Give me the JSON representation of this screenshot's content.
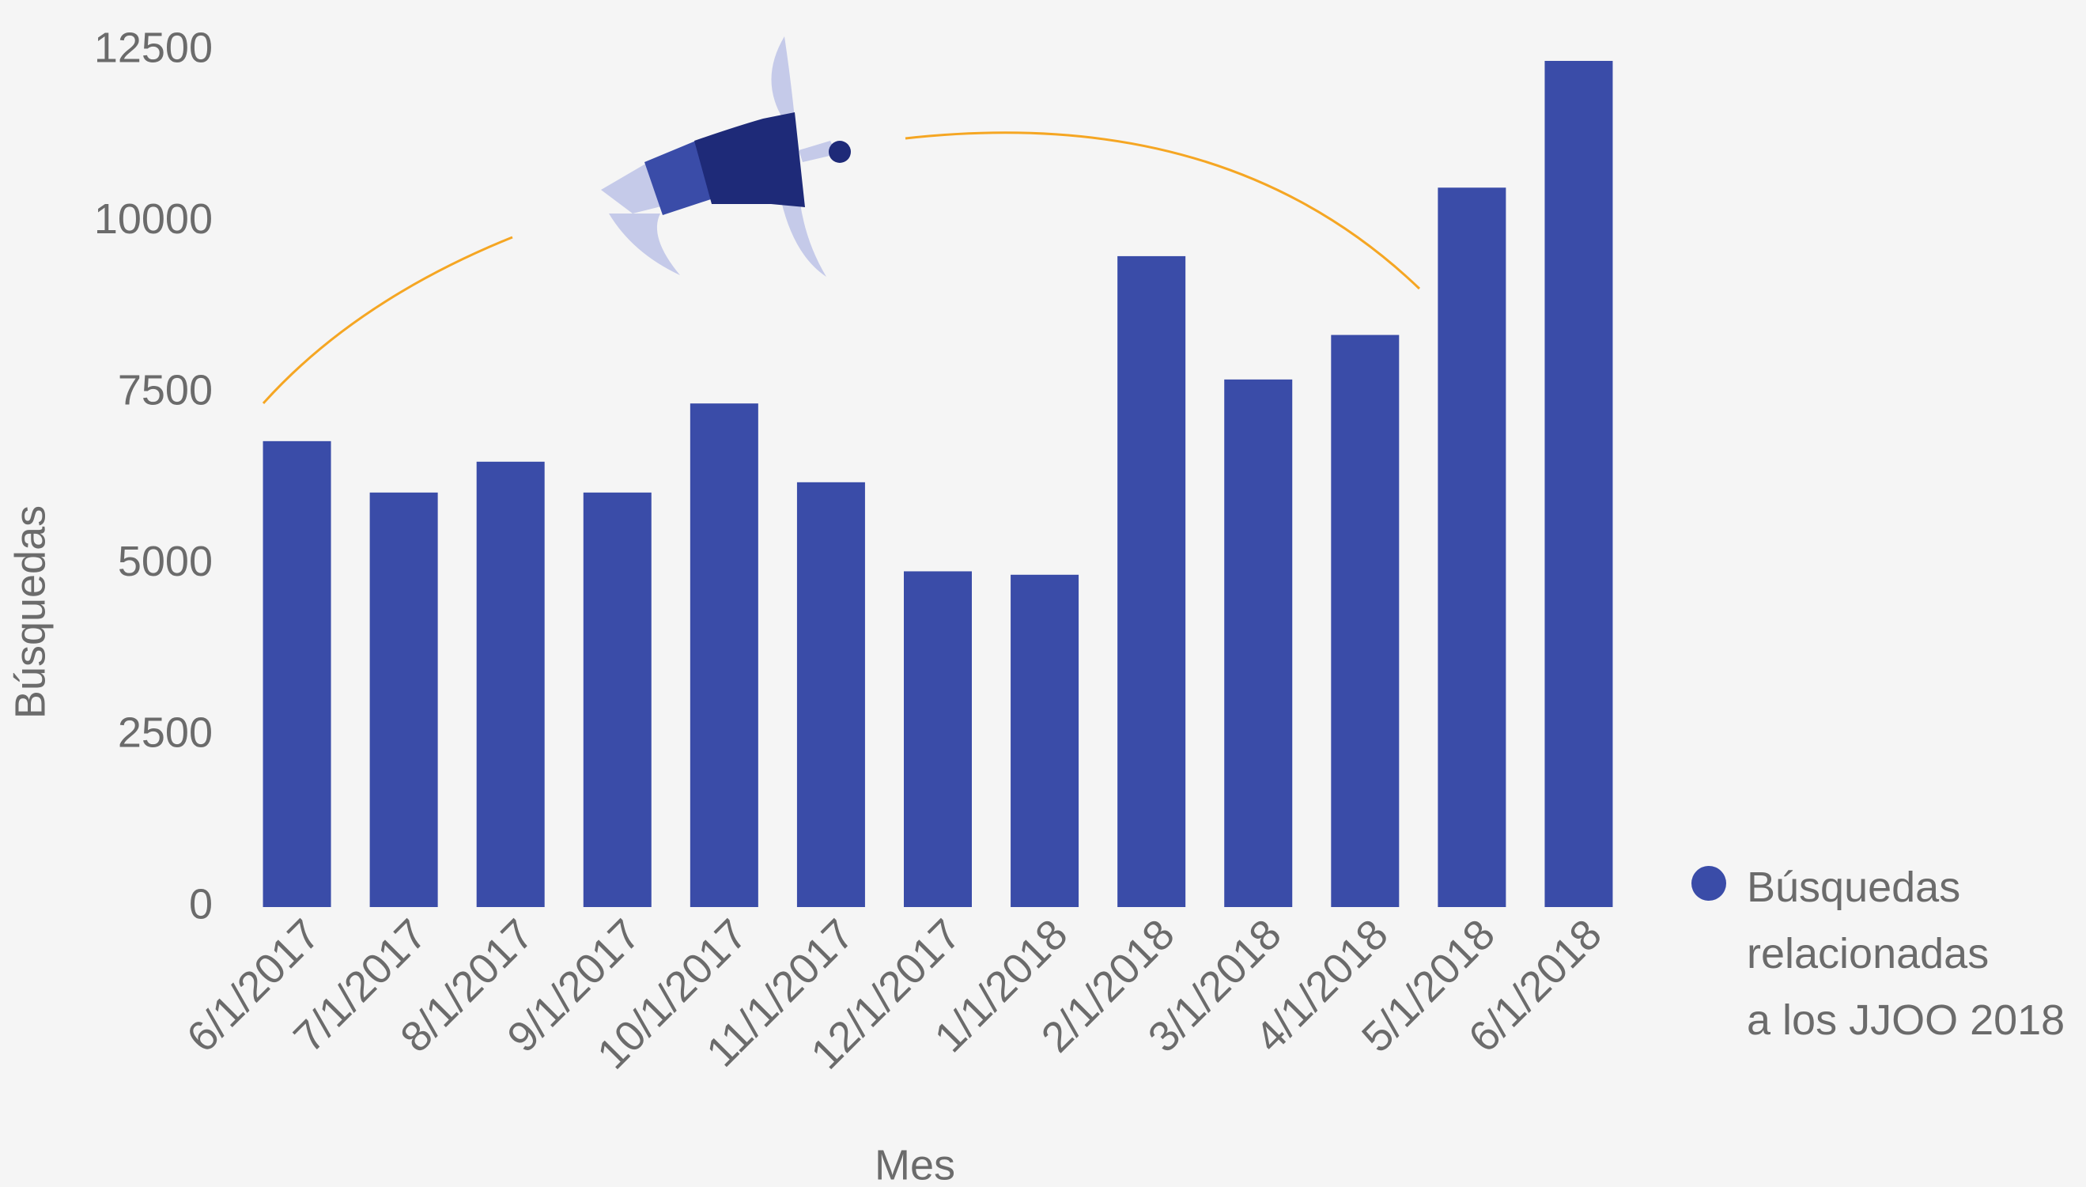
{
  "chart_data": {
    "type": "bar",
    "categories": [
      "6/1/2017",
      "7/1/2017",
      "8/1/2017",
      "9/1/2017",
      "10/1/2017",
      "11/1/2017",
      "12/1/2017",
      "1/1/2018",
      "2/1/2018",
      "3/1/2018",
      "4/1/2018",
      "5/1/2018",
      "6/1/2018"
    ],
    "series": [
      {
        "name": "Búsquedas\nrelacionadas\na los JJOO 2018",
        "color": "#3a4ca8",
        "values": [
          6800,
          6050,
          6500,
          6050,
          7350,
          6200,
          4900,
          4850,
          9500,
          7700,
          8350,
          10500,
          12350
        ]
      }
    ],
    "xlabel": "Mes",
    "ylabel": "Búsquedas",
    "ylim": [
      0,
      12500
    ],
    "yticks": [
      0,
      2500,
      5000,
      7500,
      10000,
      12500
    ],
    "grid": false,
    "legend": "right"
  }
}
